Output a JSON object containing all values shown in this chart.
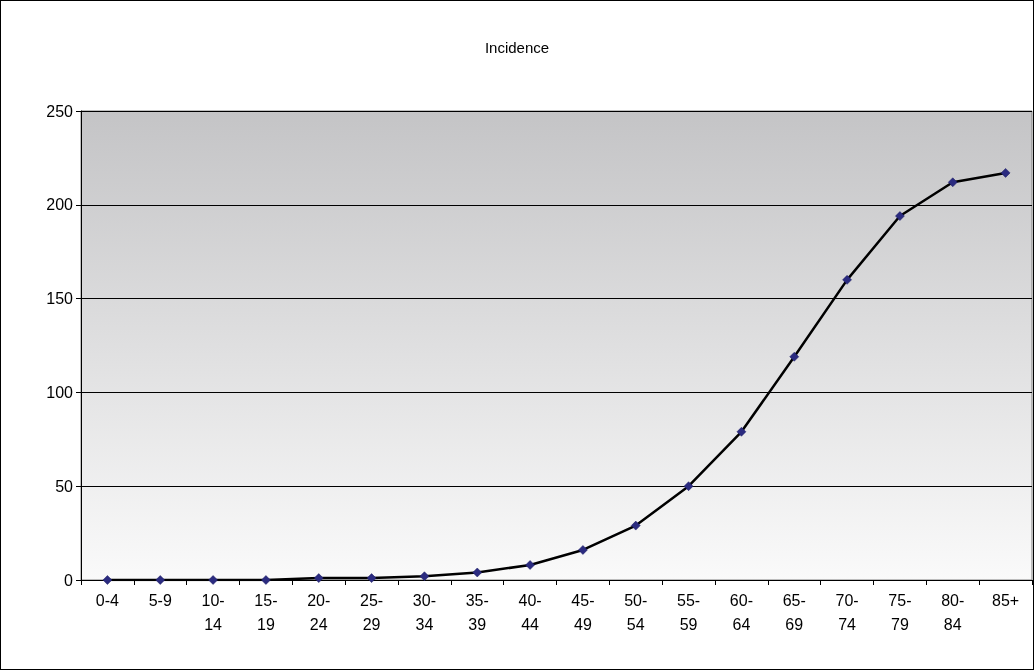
{
  "chart_data": {
    "type": "line",
    "title": "Incidence",
    "categories": [
      "0-4",
      "5-9",
      "10-14",
      "15-19",
      "20-24",
      "25-29",
      "30-34",
      "35-39",
      "40-44",
      "45-49",
      "50-54",
      "55-59",
      "60-64",
      "65-69",
      "70-74",
      "75-79",
      "80-84",
      "85+"
    ],
    "series": [
      {
        "color": "#000000",
        "values": [
          0,
          0,
          0,
          0,
          1,
          1,
          2,
          4,
          8,
          16,
          29,
          50,
          79,
          119,
          160,
          194,
          212,
          217
        ]
      }
    ],
    "ylim": [
      0,
      250
    ],
    "yticks": [
      0,
      50,
      100,
      150,
      200,
      250
    ],
    "grid": "y",
    "marker": "diamond",
    "line_style": "solid"
  }
}
